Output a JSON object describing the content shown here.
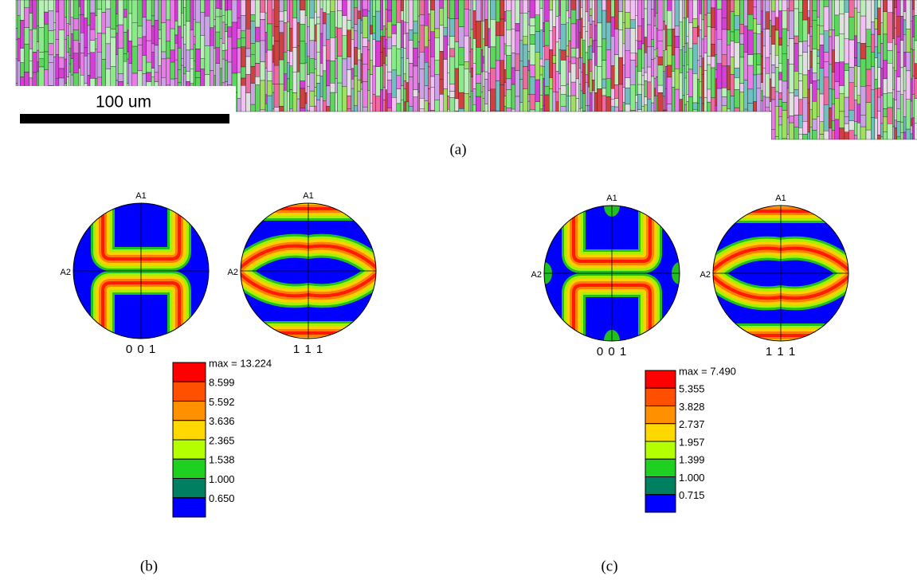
{
  "panel_a": {
    "scale_bar": "100 um",
    "caption": "(a)"
  },
  "panel_b": {
    "pole_figures": [
      {
        "top": "A1",
        "left": "A2",
        "label": "0 0 1"
      },
      {
        "top": "A1",
        "left": "A2",
        "label": "1 1 1"
      }
    ],
    "legend": [
      "max = 13.224",
      "8.599",
      "5.592",
      "3.636",
      "2.365",
      "1.538",
      "1.000",
      "0.650"
    ],
    "caption": "(b)"
  },
  "panel_c": {
    "pole_figures": [
      {
        "top": "A1",
        "left": "A2",
        "label": "0 0 1"
      },
      {
        "top": "A1",
        "left": "A2",
        "label": "1 1 1"
      }
    ],
    "legend": [
      "max = 7.490",
      "5.355",
      "3.828",
      "2.737",
      "1.957",
      "1.399",
      "1.000",
      "0.715"
    ],
    "caption": "(c)"
  }
}
